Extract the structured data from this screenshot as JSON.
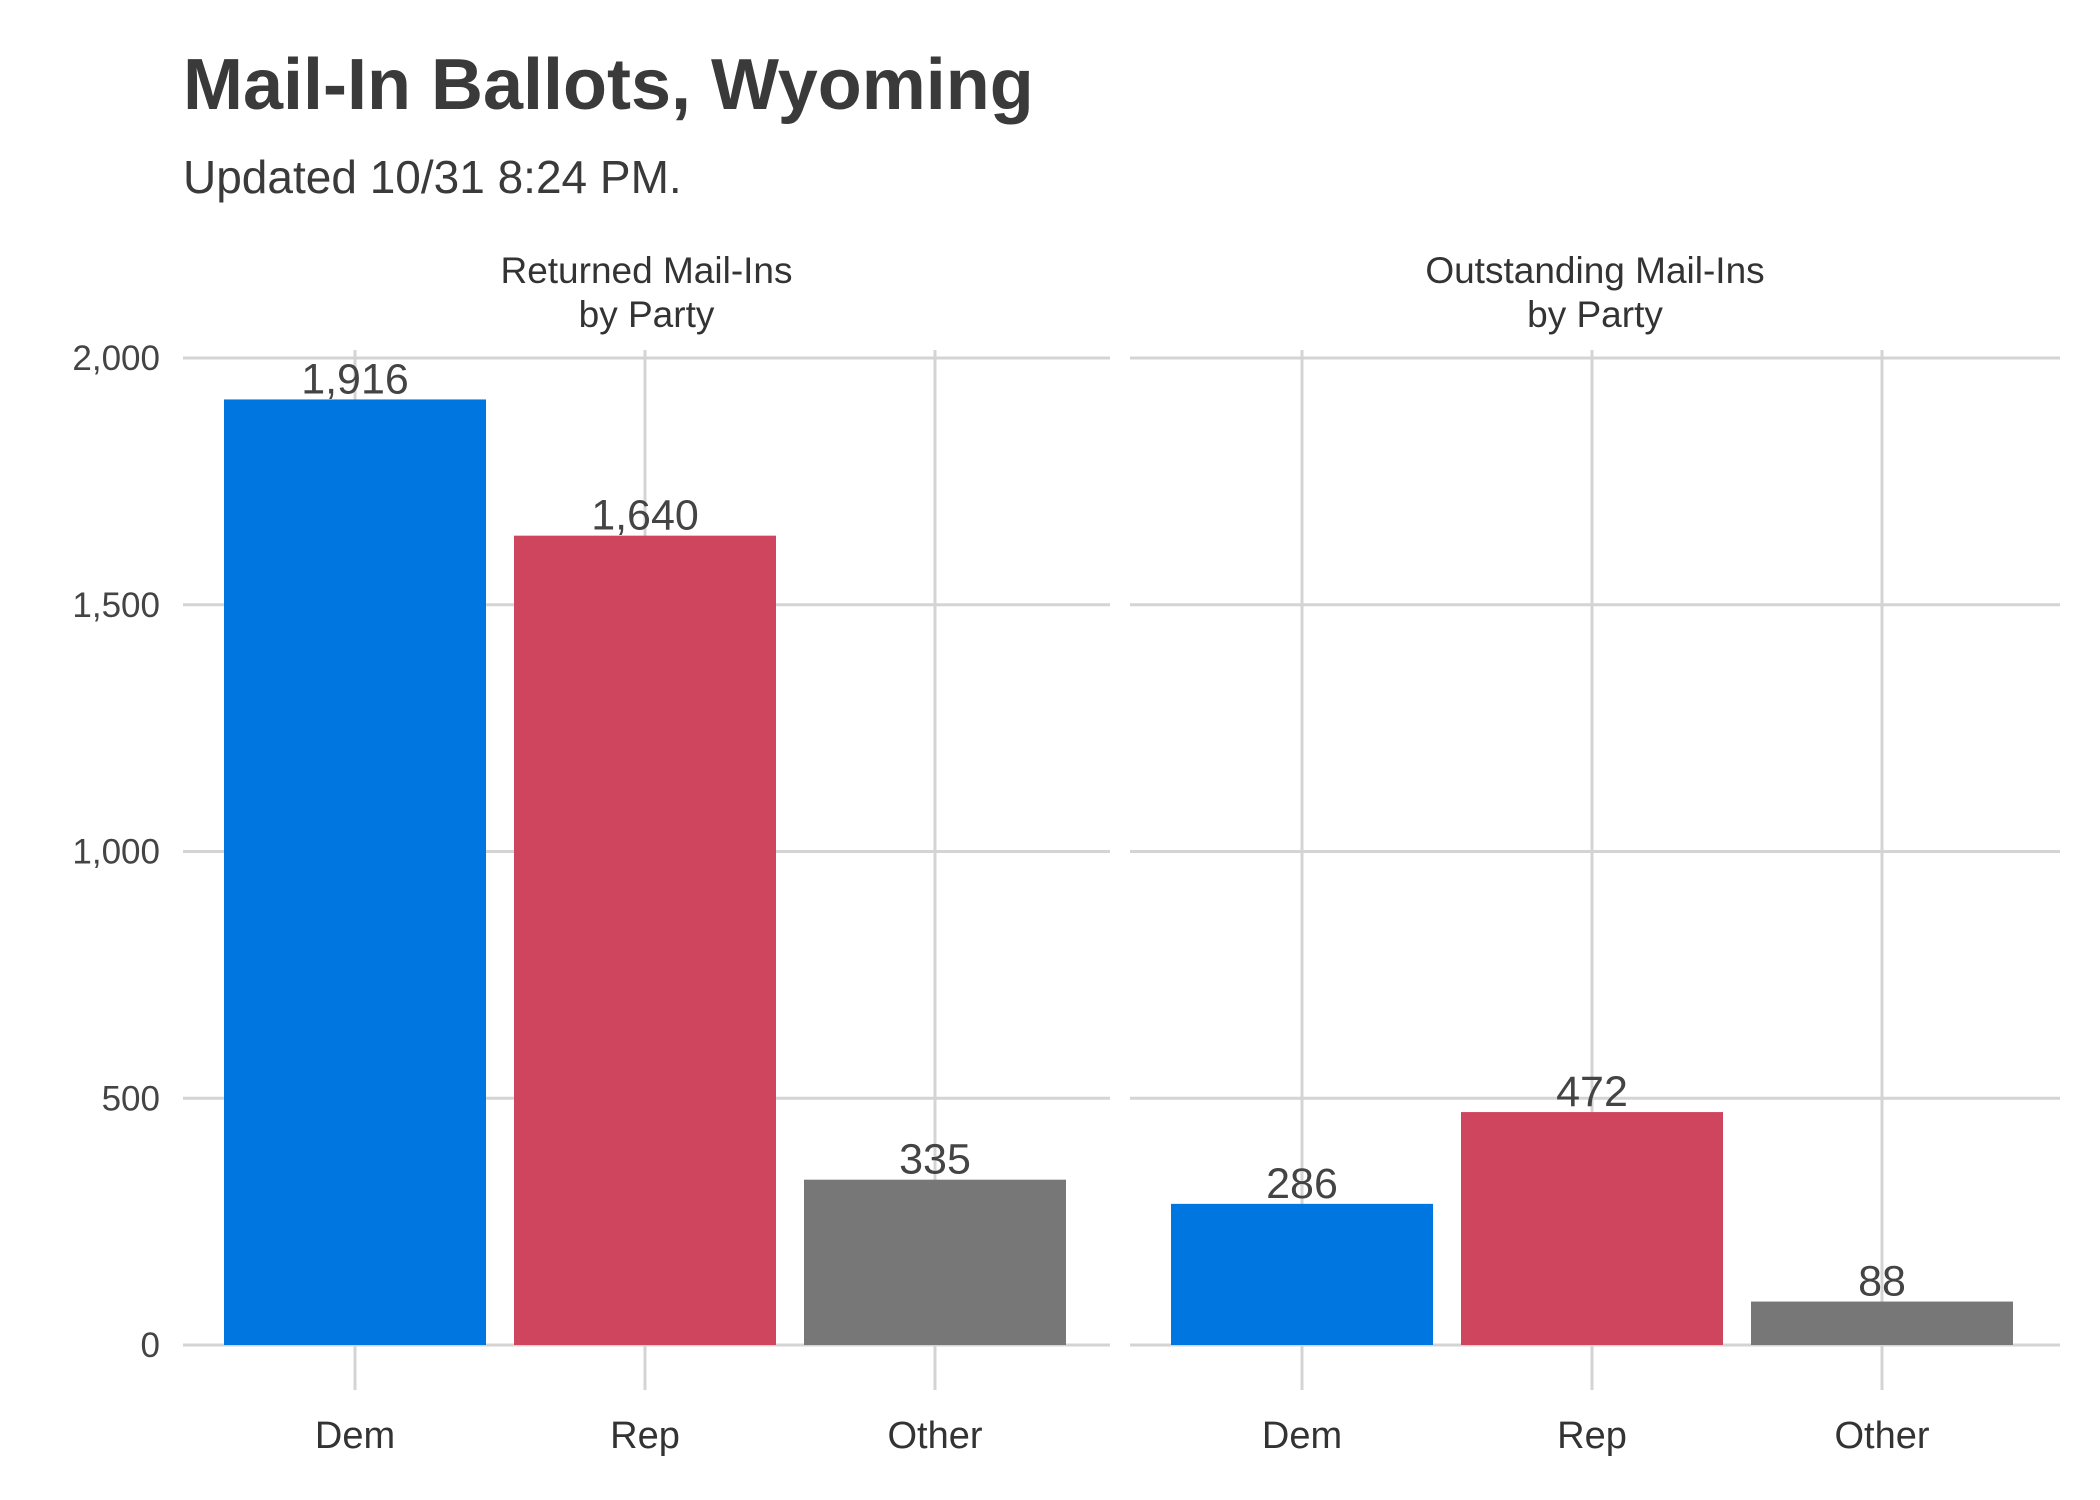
{
  "title": "Mail-In Ballots, Wyoming",
  "subtitle": "Updated 10/31 8:24 PM.",
  "colors": {
    "Dem": "#0077e0",
    "Rep": "#d0455e",
    "Other": "#777777",
    "grid": "#d4d4d4"
  },
  "chart_data": [
    {
      "type": "bar",
      "panel_title": [
        "Returned Mail-Ins",
        "by Party"
      ],
      "categories": [
        "Dem",
        "Rep",
        "Other"
      ],
      "values": [
        1916,
        1640,
        335
      ],
      "value_labels": [
        "1,916",
        "1,640",
        "335"
      ],
      "ylim": [
        0,
        2000
      ],
      "yticks": [
        0,
        500,
        1000,
        1500,
        2000
      ],
      "ytick_labels": [
        "0",
        "500",
        "1,000",
        "1,500",
        "2,000"
      ],
      "grid": true
    },
    {
      "type": "bar",
      "panel_title": [
        "Outstanding Mail-Ins",
        "by Party"
      ],
      "categories": [
        "Dem",
        "Rep",
        "Other"
      ],
      "values": [
        286,
        472,
        88
      ],
      "value_labels": [
        "286",
        "472",
        "88"
      ],
      "ylim": [
        0,
        2000
      ],
      "yticks": [
        0,
        500,
        1000,
        1500,
        2000
      ],
      "ytick_labels": [
        "0",
        "500",
        "1,000",
        "1,500",
        "2,000"
      ],
      "grid": true
    }
  ]
}
